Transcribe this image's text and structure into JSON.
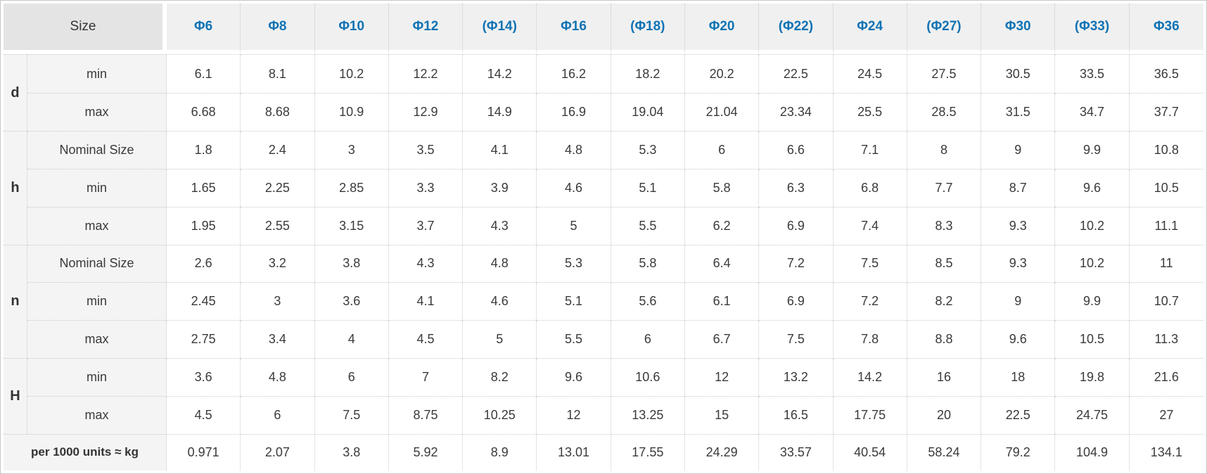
{
  "chart_data": {
    "type": "table",
    "corner_label": "Size",
    "columns": [
      "Φ6",
      "Φ8",
      "Φ10",
      "Φ12",
      "(Φ14)",
      "Φ16",
      "(Φ18)",
      "Φ20",
      "(Φ22)",
      "Φ24",
      "(Φ27)",
      "Φ30",
      "(Φ33)",
      "Φ36"
    ],
    "row_groups": [
      {
        "group": "d",
        "rows": [
          {
            "label": "min",
            "values": [
              "6.1",
              "8.1",
              "10.2",
              "12.2",
              "14.2",
              "16.2",
              "18.2",
              "20.2",
              "22.5",
              "24.5",
              "27.5",
              "30.5",
              "33.5",
              "36.5"
            ]
          },
          {
            "label": "max",
            "values": [
              "6.68",
              "8.68",
              "10.9",
              "12.9",
              "14.9",
              "16.9",
              "19.04",
              "21.04",
              "23.34",
              "25.5",
              "28.5",
              "31.5",
              "34.7",
              "37.7"
            ]
          }
        ]
      },
      {
        "group": "h",
        "rows": [
          {
            "label": "Nominal Size",
            "values": [
              "1.8",
              "2.4",
              "3",
              "3.5",
              "4.1",
              "4.8",
              "5.3",
              "6",
              "6.6",
              "7.1",
              "8",
              "9",
              "9.9",
              "10.8"
            ]
          },
          {
            "label": "min",
            "values": [
              "1.65",
              "2.25",
              "2.85",
              "3.3",
              "3.9",
              "4.6",
              "5.1",
              "5.8",
              "6.3",
              "6.8",
              "7.7",
              "8.7",
              "9.6",
              "10.5"
            ]
          },
          {
            "label": "max",
            "values": [
              "1.95",
              "2.55",
              "3.15",
              "3.7",
              "4.3",
              "5",
              "5.5",
              "6.2",
              "6.9",
              "7.4",
              "8.3",
              "9.3",
              "10.2",
              "11.1"
            ]
          }
        ]
      },
      {
        "group": "n",
        "rows": [
          {
            "label": "Nominal Size",
            "values": [
              "2.6",
              "3.2",
              "3.8",
              "4.3",
              "4.8",
              "5.3",
              "5.8",
              "6.4",
              "7.2",
              "7.5",
              "8.5",
              "9.3",
              "10.2",
              "11"
            ]
          },
          {
            "label": "min",
            "values": [
              "2.45",
              "3",
              "3.6",
              "4.1",
              "4.6",
              "5.1",
              "5.6",
              "6.1",
              "6.9",
              "7.2",
              "8.2",
              "9",
              "9.9",
              "10.7"
            ]
          },
          {
            "label": "max",
            "values": [
              "2.75",
              "3.4",
              "4",
              "4.5",
              "5",
              "5.5",
              "6",
              "6.7",
              "7.5",
              "7.8",
              "8.8",
              "9.6",
              "10.5",
              "11.3"
            ]
          }
        ]
      },
      {
        "group": "H",
        "rows": [
          {
            "label": "min",
            "values": [
              "3.6",
              "4.8",
              "6",
              "7",
              "8.2",
              "9.6",
              "10.6",
              "12",
              "13.2",
              "14.2",
              "16",
              "18",
              "19.8",
              "21.6"
            ]
          },
          {
            "label": "max",
            "values": [
              "4.5",
              "6",
              "7.5",
              "8.75",
              "10.25",
              "12",
              "13.25",
              "15",
              "16.5",
              "17.75",
              "20",
              "22.5",
              "24.75",
              "27"
            ]
          }
        ]
      }
    ],
    "footer_row": {
      "label": "per 1000 units ≈ kg",
      "values": [
        "0.971",
        "2.07",
        "3.8",
        "5.92",
        "8.9",
        "13.01",
        "17.55",
        "24.29",
        "33.57",
        "40.54",
        "58.24",
        "79.2",
        "104.9",
        "134.1"
      ]
    },
    "layout_hints": {
      "grid": "dotted",
      "header_text_style": "bold"
    },
    "colors": {
      "accent_blue": "#1173b4",
      "header_bg": "#f0f0f0",
      "corner_bg": "#e4e4e4",
      "label_bg": "#f4f4f4",
      "border": "#c9c9c9",
      "text": "#3a3a3a"
    }
  }
}
